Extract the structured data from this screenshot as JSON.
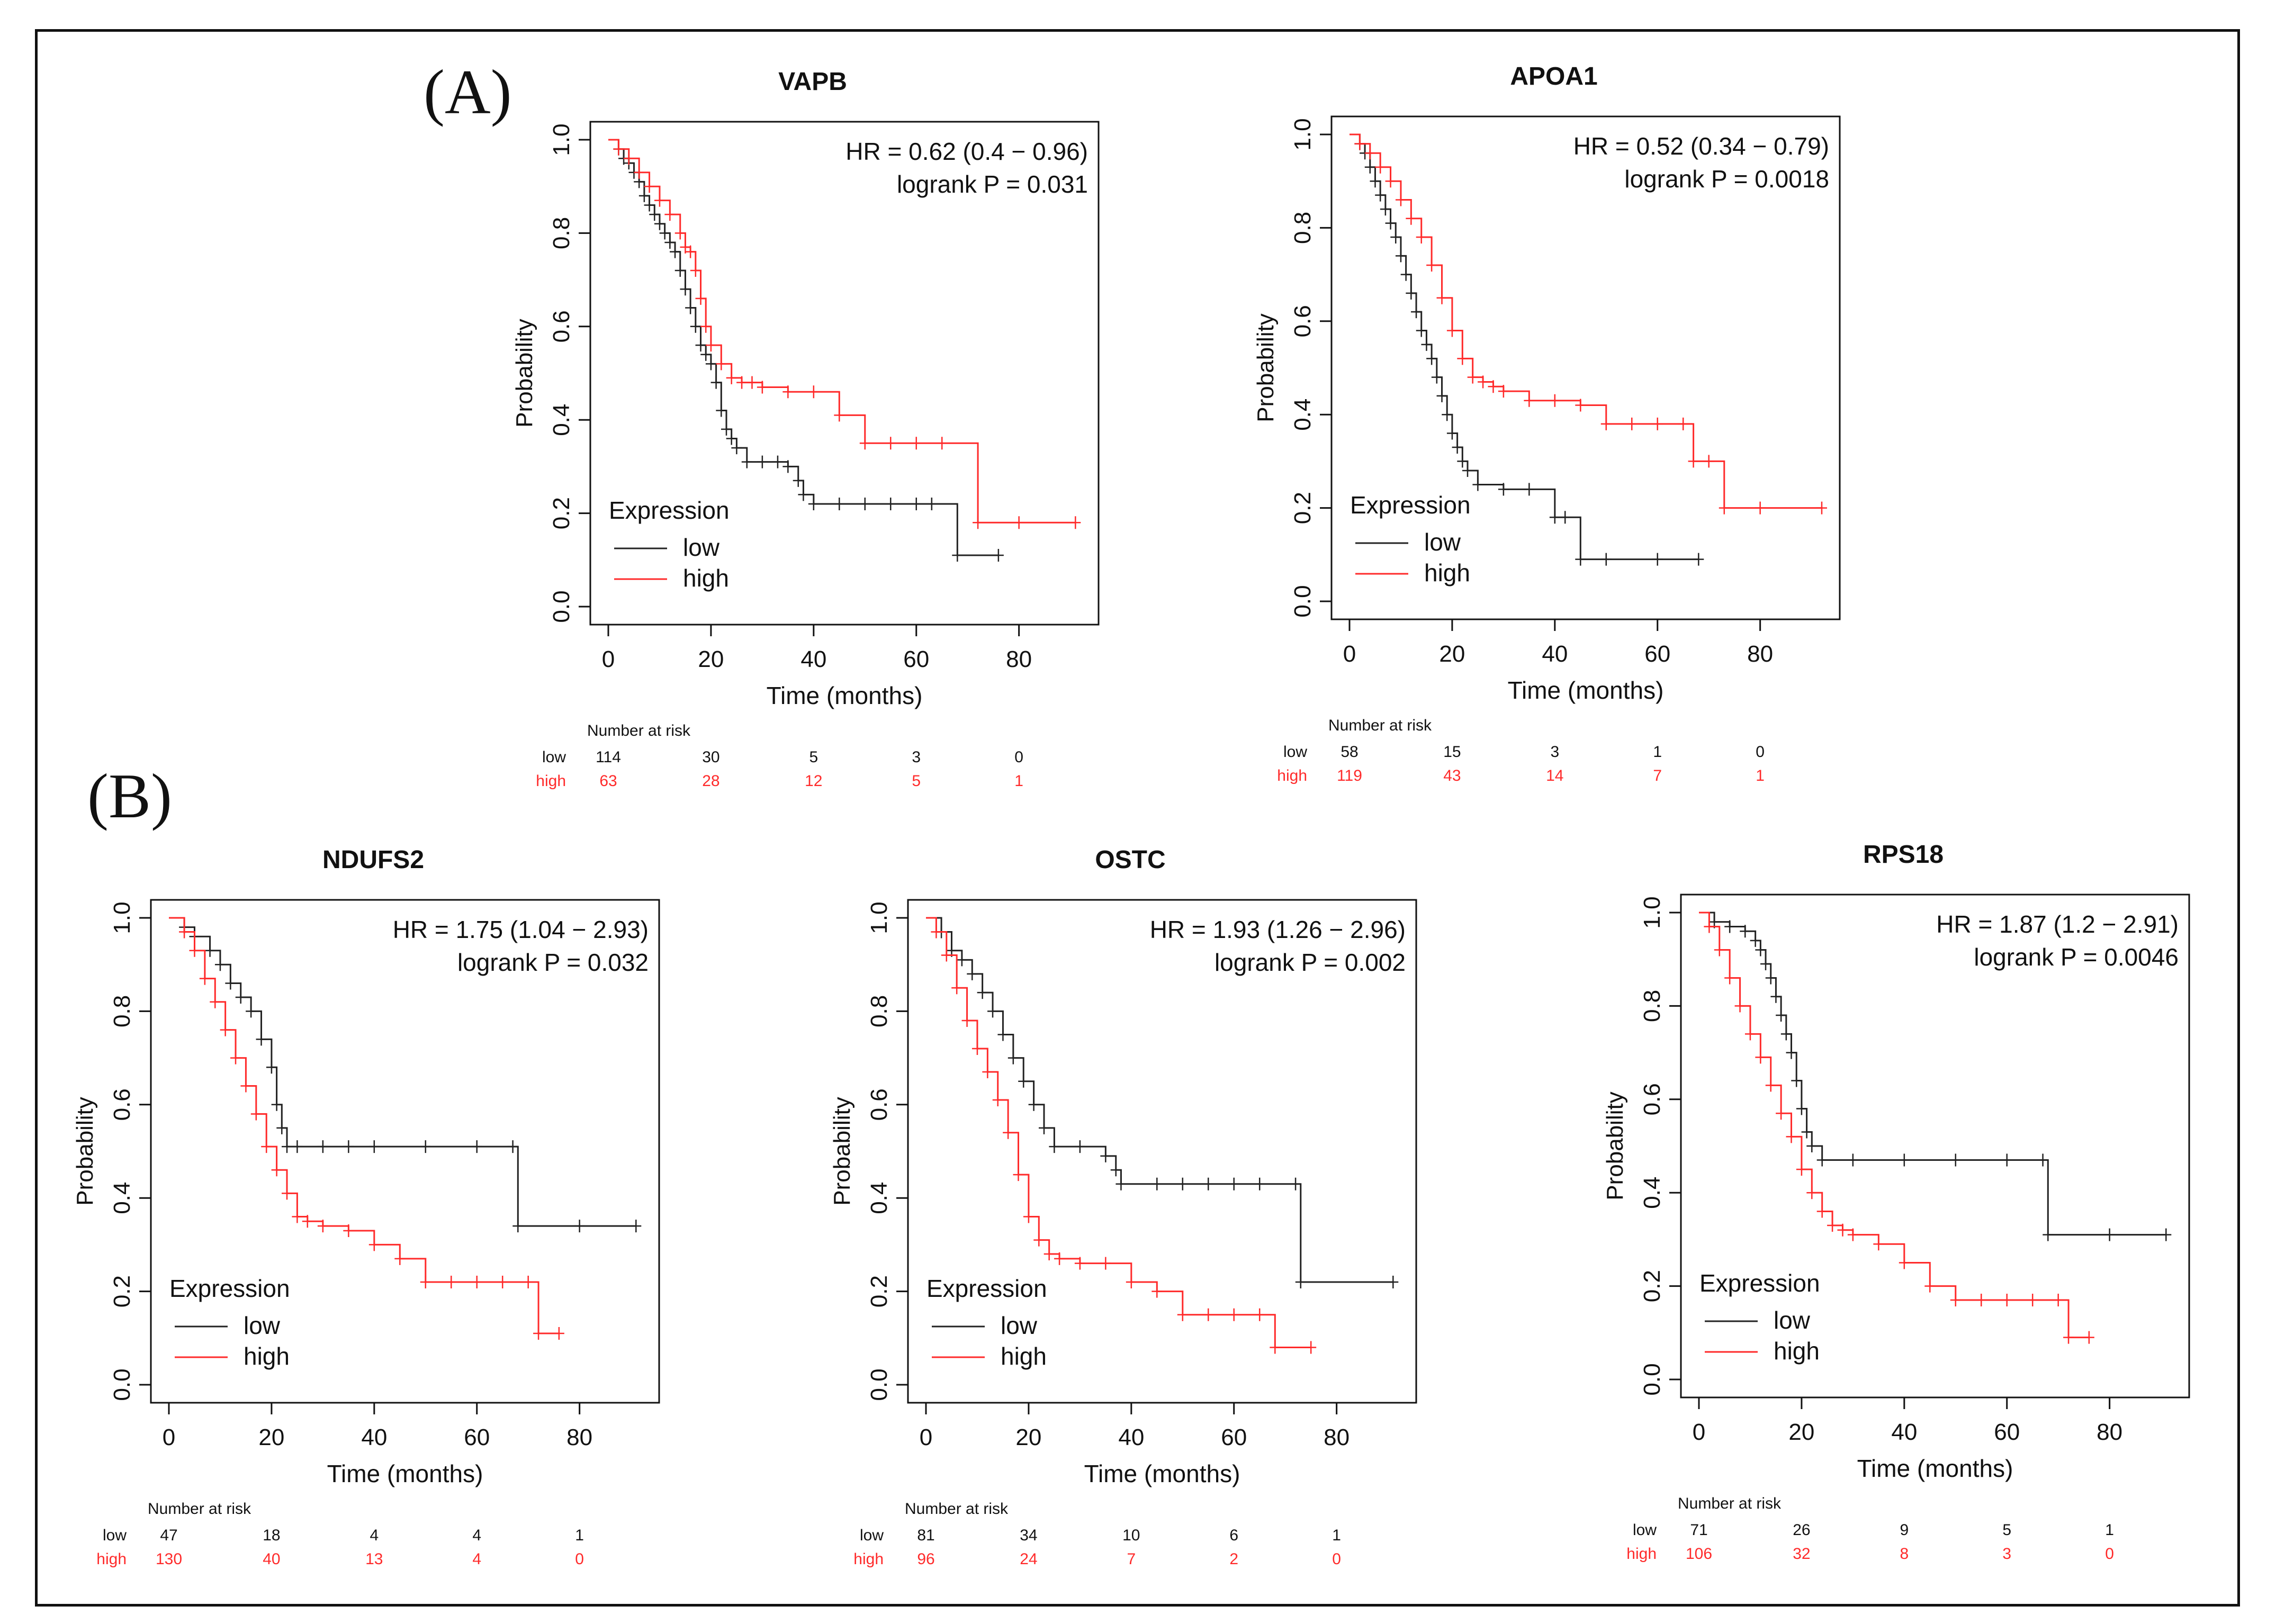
{
  "figure": {
    "panel_labels": [
      "(A)",
      "(B)"
    ],
    "legend_title": "Expression",
    "risk_header": "Number at risk",
    "colors": {
      "low": "#222222",
      "high": "#ff2a2a",
      "axis": "#111111"
    }
  },
  "chart_data": [
    {
      "type": "line",
      "id": "vapb",
      "title": "VAPB",
      "xlabel": "Time (months)",
      "ylabel": "Probability",
      "xlim": [
        0,
        92
      ],
      "ylim": [
        0,
        1
      ],
      "xticks": [
        "0",
        "20",
        "40",
        "60",
        "80"
      ],
      "yticks": [
        "0.0",
        "0.2",
        "0.4",
        "0.6",
        "0.8",
        "1.0"
      ],
      "hr_text": "HR = 0.62 (0.4 − 0.96)",
      "p_text": "logrank P = 0.031",
      "legend": [
        "low",
        "high"
      ],
      "series": [
        {
          "name": "low",
          "x": [
            0,
            2,
            3,
            4,
            5,
            6,
            7,
            8,
            9,
            10,
            11,
            12,
            13,
            14,
            15,
            16,
            17,
            18,
            19,
            20,
            21,
            22,
            23,
            24,
            25,
            27,
            30,
            33,
            35,
            37,
            38,
            40,
            45,
            50,
            55,
            60,
            63,
            68,
            76
          ],
          "y": [
            1.0,
            0.98,
            0.96,
            0.95,
            0.93,
            0.91,
            0.88,
            0.86,
            0.84,
            0.82,
            0.8,
            0.78,
            0.76,
            0.72,
            0.68,
            0.64,
            0.6,
            0.56,
            0.54,
            0.52,
            0.48,
            0.42,
            0.38,
            0.36,
            0.34,
            0.31,
            0.31,
            0.31,
            0.3,
            0.27,
            0.24,
            0.22,
            0.22,
            0.22,
            0.22,
            0.22,
            0.22,
            0.11,
            0.11
          ]
        },
        {
          "name": "high",
          "x": [
            0,
            2,
            4,
            6,
            8,
            10,
            12,
            14,
            15,
            16,
            17,
            18,
            19,
            20,
            22,
            24,
            26,
            28,
            30,
            35,
            40,
            45,
            50,
            55,
            60,
            65,
            72,
            80,
            91
          ],
          "y": [
            1.0,
            0.98,
            0.96,
            0.93,
            0.9,
            0.87,
            0.84,
            0.8,
            0.77,
            0.76,
            0.72,
            0.66,
            0.6,
            0.56,
            0.52,
            0.49,
            0.48,
            0.48,
            0.47,
            0.46,
            0.46,
            0.41,
            0.35,
            0.35,
            0.35,
            0.35,
            0.18,
            0.18,
            0.18
          ]
        }
      ],
      "risk_table": {
        "times": [
          "0",
          "20",
          "40",
          "60",
          "80"
        ],
        "low": [
          "114",
          "30",
          "5",
          "3",
          "0"
        ],
        "high": [
          "63",
          "28",
          "12",
          "5",
          "1"
        ]
      }
    },
    {
      "type": "line",
      "id": "apoa1",
      "title": "APOA1",
      "xlabel": "Time (months)",
      "ylabel": "Probability",
      "xlim": [
        0,
        92
      ],
      "ylim": [
        0,
        1
      ],
      "xticks": [
        "0",
        "20",
        "40",
        "60",
        "80"
      ],
      "yticks": [
        "0.0",
        "0.2",
        "0.4",
        "0.6",
        "0.8",
        "1.0"
      ],
      "hr_text": "HR = 0.52 (0.34 − 0.79)",
      "p_text": "logrank P = 0.0018",
      "legend": [
        "low",
        "high"
      ],
      "series": [
        {
          "name": "low",
          "x": [
            0,
            2,
            3,
            4,
            5,
            6,
            7,
            8,
            9,
            10,
            11,
            12,
            13,
            14,
            15,
            16,
            17,
            18,
            19,
            20,
            21,
            22,
            23,
            25,
            30,
            35,
            40,
            42,
            45,
            50,
            60,
            68
          ],
          "y": [
            1.0,
            0.98,
            0.96,
            0.93,
            0.9,
            0.87,
            0.84,
            0.81,
            0.78,
            0.74,
            0.7,
            0.66,
            0.62,
            0.58,
            0.55,
            0.52,
            0.48,
            0.44,
            0.4,
            0.36,
            0.33,
            0.3,
            0.28,
            0.25,
            0.24,
            0.24,
            0.18,
            0.18,
            0.09,
            0.09,
            0.09,
            0.09
          ]
        },
        {
          "name": "high",
          "x": [
            0,
            2,
            4,
            6,
            8,
            10,
            12,
            14,
            16,
            18,
            20,
            22,
            24,
            26,
            28,
            30,
            35,
            40,
            45,
            50,
            55,
            60,
            65,
            67,
            70,
            73,
            80,
            92
          ],
          "y": [
            1.0,
            0.98,
            0.96,
            0.93,
            0.9,
            0.86,
            0.82,
            0.78,
            0.72,
            0.65,
            0.58,
            0.52,
            0.48,
            0.47,
            0.46,
            0.45,
            0.43,
            0.43,
            0.42,
            0.38,
            0.38,
            0.38,
            0.38,
            0.3,
            0.3,
            0.2,
            0.2,
            0.2
          ]
        }
      ],
      "risk_table": {
        "times": [
          "0",
          "20",
          "40",
          "60",
          "80"
        ],
        "low": [
          "58",
          "15",
          "3",
          "1",
          "0"
        ],
        "high": [
          "119",
          "43",
          "14",
          "7",
          "1"
        ]
      }
    },
    {
      "type": "line",
      "id": "ndufs2",
      "title": "NDUFS2",
      "xlabel": "Time (months)",
      "ylabel": "Probability",
      "xlim": [
        0,
        92
      ],
      "ylim": [
        0,
        1
      ],
      "xticks": [
        "0",
        "20",
        "40",
        "60",
        "80"
      ],
      "yticks": [
        "0.0",
        "0.2",
        "0.4",
        "0.6",
        "0.8",
        "1.0"
      ],
      "hr_text": "HR = 1.75 (1.04 − 2.93)",
      "p_text": "logrank P = 0.032",
      "legend": [
        "low",
        "high"
      ],
      "series": [
        {
          "name": "low",
          "x": [
            0,
            3,
            5,
            8,
            10,
            12,
            14,
            16,
            18,
            20,
            21,
            22,
            23,
            25,
            30,
            35,
            40,
            50,
            60,
            67,
            68,
            80,
            91
          ],
          "y": [
            1.0,
            0.98,
            0.96,
            0.93,
            0.9,
            0.86,
            0.83,
            0.8,
            0.74,
            0.68,
            0.6,
            0.55,
            0.51,
            0.51,
            0.51,
            0.51,
            0.51,
            0.51,
            0.51,
            0.51,
            0.34,
            0.34,
            0.34
          ]
        },
        {
          "name": "high",
          "x": [
            0,
            3,
            5,
            7,
            9,
            11,
            13,
            15,
            17,
            19,
            21,
            23,
            25,
            27,
            30,
            35,
            40,
            45,
            50,
            55,
            60,
            65,
            70,
            72,
            76
          ],
          "y": [
            1.0,
            0.97,
            0.93,
            0.87,
            0.82,
            0.76,
            0.7,
            0.64,
            0.58,
            0.51,
            0.46,
            0.41,
            0.36,
            0.35,
            0.34,
            0.33,
            0.3,
            0.27,
            0.22,
            0.22,
            0.22,
            0.22,
            0.22,
            0.11,
            0.11
          ]
        }
      ],
      "risk_table": {
        "times": [
          "0",
          "20",
          "40",
          "60",
          "80"
        ],
        "low": [
          "47",
          "18",
          "4",
          "4",
          "1"
        ],
        "high": [
          "130",
          "40",
          "13",
          "4",
          "0"
        ]
      }
    },
    {
      "type": "line",
      "id": "ostc",
      "title": "OSTC",
      "xlabel": "Time (months)",
      "ylabel": "Probability",
      "xlim": [
        0,
        92
      ],
      "ylim": [
        0,
        1
      ],
      "xticks": [
        "0",
        "20",
        "40",
        "60",
        "80"
      ],
      "yticks": [
        "0.0",
        "0.2",
        "0.4",
        "0.6",
        "0.8",
        "1.0"
      ],
      "hr_text": "HR = 1.93 (1.26 − 2.96)",
      "p_text": "logrank P = 0.002",
      "legend": [
        "low",
        "high"
      ],
      "series": [
        {
          "name": "low",
          "x": [
            0,
            3,
            5,
            7,
            9,
            11,
            13,
            15,
            17,
            19,
            21,
            23,
            25,
            30,
            35,
            37,
            38,
            45,
            50,
            55,
            60,
            65,
            72,
            73,
            91
          ],
          "y": [
            1.0,
            0.97,
            0.93,
            0.91,
            0.88,
            0.84,
            0.8,
            0.75,
            0.7,
            0.65,
            0.6,
            0.55,
            0.51,
            0.51,
            0.49,
            0.46,
            0.43,
            0.43,
            0.43,
            0.43,
            0.43,
            0.43,
            0.43,
            0.22,
            0.22
          ]
        },
        {
          "name": "high",
          "x": [
            0,
            2,
            4,
            6,
            8,
            10,
            12,
            14,
            16,
            18,
            20,
            22,
            24,
            26,
            30,
            35,
            40,
            45,
            50,
            55,
            60,
            65,
            68,
            75
          ],
          "y": [
            1.0,
            0.97,
            0.92,
            0.85,
            0.78,
            0.72,
            0.67,
            0.61,
            0.54,
            0.45,
            0.36,
            0.31,
            0.28,
            0.27,
            0.26,
            0.26,
            0.22,
            0.2,
            0.15,
            0.15,
            0.15,
            0.15,
            0.08,
            0.08
          ]
        }
      ],
      "risk_table": {
        "times": [
          "0",
          "20",
          "40",
          "60",
          "80"
        ],
        "low": [
          "81",
          "34",
          "10",
          "6",
          "1"
        ],
        "high": [
          "96",
          "24",
          "7",
          "2",
          "0"
        ]
      }
    },
    {
      "type": "line",
      "id": "rps18",
      "title": "RPS18",
      "xlabel": "Time (months)",
      "ylabel": "Probability",
      "xlim": [
        0,
        92
      ],
      "ylim": [
        0,
        1
      ],
      "xticks": [
        "0",
        "20",
        "40",
        "60",
        "80"
      ],
      "yticks": [
        "0.0",
        "0.2",
        "0.4",
        "0.6",
        "0.8",
        "1.0"
      ],
      "hr_text": "HR = 1.87 (1.2 − 2.91)",
      "p_text": "logrank P = 0.0046",
      "legend": [
        "low",
        "high"
      ],
      "series": [
        {
          "name": "low",
          "x": [
            0,
            3,
            6,
            9,
            11,
            12,
            13,
            14,
            15,
            16,
            17,
            18,
            19,
            20,
            21,
            22,
            24,
            30,
            40,
            50,
            60,
            67,
            68,
            80,
            91
          ],
          "y": [
            1.0,
            0.98,
            0.97,
            0.96,
            0.94,
            0.92,
            0.89,
            0.86,
            0.82,
            0.78,
            0.74,
            0.7,
            0.64,
            0.58,
            0.53,
            0.5,
            0.47,
            0.47,
            0.47,
            0.47,
            0.47,
            0.47,
            0.31,
            0.31,
            0.31
          ]
        },
        {
          "name": "high",
          "x": [
            0,
            2,
            4,
            6,
            8,
            10,
            12,
            14,
            16,
            18,
            20,
            22,
            24,
            26,
            28,
            30,
            35,
            40,
            45,
            50,
            55,
            60,
            65,
            70,
            72,
            76
          ],
          "y": [
            1.0,
            0.97,
            0.92,
            0.86,
            0.8,
            0.74,
            0.69,
            0.63,
            0.57,
            0.52,
            0.45,
            0.4,
            0.36,
            0.33,
            0.32,
            0.31,
            0.29,
            0.25,
            0.2,
            0.17,
            0.17,
            0.17,
            0.17,
            0.17,
            0.09,
            0.09
          ]
        }
      ],
      "risk_table": {
        "times": [
          "0",
          "20",
          "40",
          "60",
          "80"
        ],
        "low": [
          "71",
          "26",
          "9",
          "5",
          "1"
        ],
        "high": [
          "106",
          "32",
          "8",
          "3",
          "0"
        ]
      }
    }
  ]
}
